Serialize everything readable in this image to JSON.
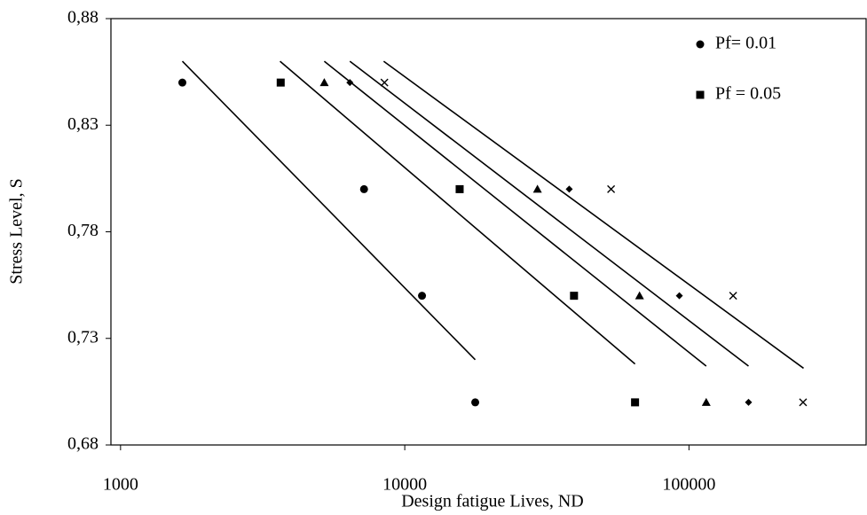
{
  "chart_data": {
    "type": "scatter",
    "xlabel": "Design fatigue Lives, ND",
    "ylabel": "Stress Level, S",
    "xscale": "log",
    "xlim": [
      925,
      420000
    ],
    "ylim": [
      0.68,
      0.88
    ],
    "xticks": [
      1000,
      10000,
      100000
    ],
    "yticks": [
      {
        "value": 0.68,
        "label": "0,68"
      },
      {
        "value": 0.73,
        "label": "0,73"
      },
      {
        "value": 0.78,
        "label": "0,78"
      },
      {
        "value": 0.83,
        "label": "0,83"
      },
      {
        "value": 0.88,
        "label": "0,88"
      }
    ],
    "legend": "top-right",
    "series": [
      {
        "name": "Pf= 0.01",
        "marker": "circle",
        "color": "#000000",
        "x": [
          1650,
          7190,
          11500,
          17700
        ],
        "values": [
          0.85,
          0.8,
          0.75,
          0.7
        ]
      },
      {
        "name": "Pf = 0.05",
        "marker": "square",
        "color": "#000000",
        "x": [
          3660,
          15600,
          39400,
          64600
        ],
        "values": [
          0.85,
          0.8,
          0.75,
          0.7
        ]
      },
      {
        "marker": "triangle",
        "color": "#000000",
        "x": [
          5210,
          29300,
          67000,
          115000
        ],
        "values": [
          0.85,
          0.8,
          0.75,
          0.7
        ]
      },
      {
        "marker": "diamond",
        "color": "#000000",
        "x": [
          6410,
          37900,
          92500,
          162000
        ],
        "values": [
          0.85,
          0.8,
          0.75,
          0.7
        ]
      },
      {
        "marker": "cross",
        "color": "#000000",
        "x": [
          8480,
          53200,
          143000,
          252000
        ],
        "values": [
          0.85,
          0.8,
          0.75,
          0.7
        ]
      }
    ],
    "trendlines": [
      {
        "x": [
          1650,
          17700
        ],
        "values": [
          0.86,
          0.72
        ]
      },
      {
        "x": [
          3640,
          64600
        ],
        "values": [
          0.86,
          0.718
        ]
      },
      {
        "x": [
          5210,
          115000
        ],
        "values": [
          0.86,
          0.717
        ]
      },
      {
        "x": [
          6410,
          162000
        ],
        "values": [
          0.86,
          0.717
        ]
      },
      {
        "x": [
          8430,
          253000
        ],
        "values": [
          0.86,
          0.716
        ]
      }
    ]
  }
}
